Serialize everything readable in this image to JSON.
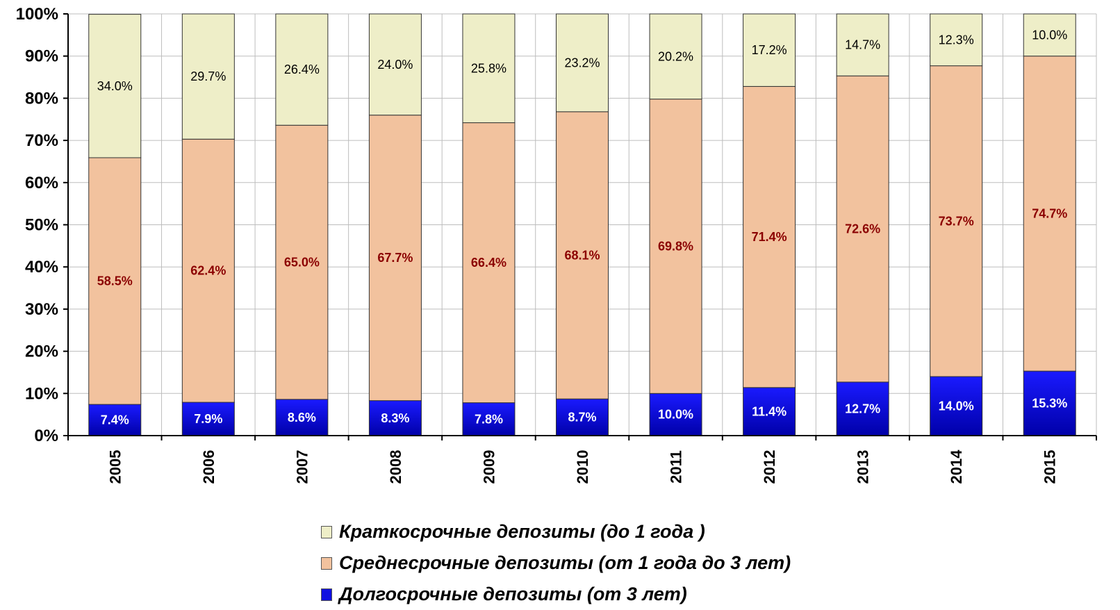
{
  "chart_data": {
    "type": "bar",
    "stacked": true,
    "orientation": "vertical",
    "title": "",
    "xlabel": "",
    "ylabel": "",
    "ylim": [
      0,
      100
    ],
    "yticks": [
      "0%",
      "10%",
      "20%",
      "30%",
      "40%",
      "50%",
      "60%",
      "70%",
      "80%",
      "90%",
      "100%"
    ],
    "grid": true,
    "legend_position": "bottom",
    "categories": [
      "2005",
      "2006",
      "2007",
      "2008",
      "2009",
      "2010",
      "2011",
      "2012",
      "2013",
      "2014",
      "2015"
    ],
    "series": [
      {
        "name": "Долгосрочные депозиты (от 3 лет)",
        "color": "#1010e0",
        "label_color": "#ffffff",
        "values": [
          7.4,
          7.9,
          8.6,
          8.3,
          7.8,
          8.7,
          10.0,
          11.4,
          12.7,
          14.0,
          15.3
        ],
        "labels": [
          "7.4%",
          "7.9%",
          "8.6%",
          "8.3%",
          "7.8%",
          "8.7%",
          "10.0%",
          "11.4%",
          "12.7%",
          "14.0%",
          "15.3%"
        ]
      },
      {
        "name": "Среднесрочные депозиты (от 1 года до 3  лет)",
        "color": "#f2c29e",
        "label_color": "#8b0000",
        "values": [
          58.5,
          62.4,
          65.0,
          67.7,
          66.4,
          68.1,
          69.8,
          71.4,
          72.6,
          73.7,
          74.7
        ],
        "labels": [
          "58.5%",
          "62.4%",
          "65.0%",
          "67.7%",
          "66.4%",
          "68.1%",
          "69.8%",
          "71.4%",
          "72.6%",
          "73.7%",
          "74.7%"
        ]
      },
      {
        "name": "Краткосрочные депозиты (до 1 года )",
        "color": "#eeeec8",
        "label_color": "#000000",
        "values": [
          34.0,
          29.7,
          26.4,
          24.0,
          25.8,
          23.2,
          20.2,
          17.2,
          14.7,
          12.3,
          10.0
        ],
        "labels": [
          "34.0%",
          "29.7%",
          "26.4%",
          "24.0%",
          "25.8%",
          "23.2%",
          "20.2%",
          "17.2%",
          "14.7%",
          "12.3%",
          "10.0%"
        ]
      }
    ],
    "legend_order": [
      "Краткосрочные депозиты (до 1 года )",
      "Среднесрочные депозиты (от 1 года до 3  лет)",
      "Долгосрочные депозиты (от 3 лет)"
    ]
  },
  "legend": {
    "items": [
      {
        "label": "Краткосрочные депозиты (до 1 года )",
        "color": "#eeeec8"
      },
      {
        "label": "Среднесрочные депозиты (от 1 года до 3  лет)",
        "color": "#f2c29e"
      },
      {
        "label": "Долгосрочные депозиты (от 3 лет)",
        "color": "#1010e0"
      }
    ]
  }
}
